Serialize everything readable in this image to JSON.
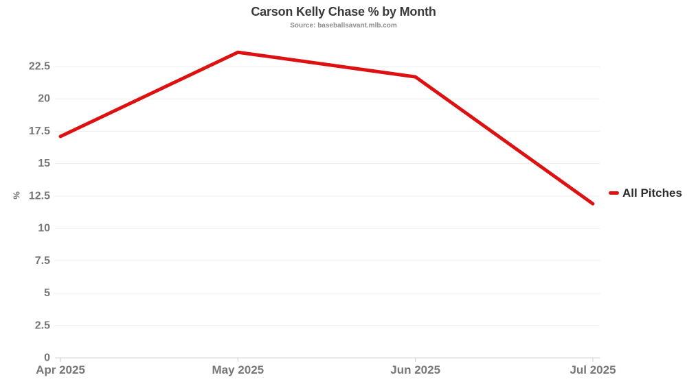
{
  "header": {
    "title": "Carson Kelly Chase % by Month",
    "subtitle": "Source: baseballsavant.mlb.com"
  },
  "legend": {
    "position": "right",
    "items": [
      {
        "label": "All Pitches",
        "color": "#dd1111"
      }
    ]
  },
  "colors": {
    "line": "#dd1111",
    "gridline": "#ededed",
    "axis_line": "#dcdcdc",
    "tick_mark": "#cccccc",
    "tick_text": "#777777",
    "title_text": "#3a3a3a",
    "subtitle_text": "#8d8d8d",
    "legend_text": "#2b2b2b",
    "background": "#ffffff"
  },
  "chart_data": {
    "type": "line",
    "title": "Carson Kelly Chase % by Month",
    "subtitle": "Source: baseballsavant.mlb.com",
    "categories": [
      "Apr 2025",
      "May 2025",
      "Jun 2025",
      "Jul 2025"
    ],
    "series": [
      {
        "name": "All Pitches",
        "color": "#dd1111",
        "values": [
          17.1,
          23.6,
          21.7,
          11.9
        ]
      }
    ],
    "xlabel": "",
    "ylabel": "%",
    "yticks": [
      "0",
      "2.5",
      "5",
      "7.5",
      "10",
      "12.5",
      "15",
      "17.5",
      "20",
      "22.5"
    ],
    "ylim": [
      0,
      23.8
    ],
    "grid": true,
    "legend_position": "center-right",
    "markers": false
  }
}
